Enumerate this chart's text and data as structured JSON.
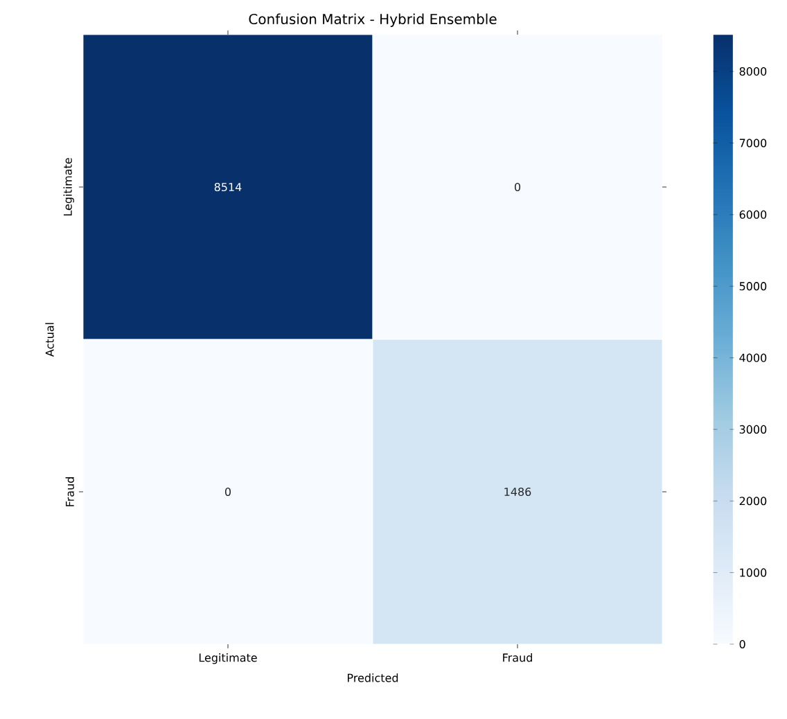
{
  "chart_data": {
    "type": "heatmap",
    "title": "Confusion Matrix - Hybrid Ensemble",
    "xlabel": "Predicted",
    "ylabel": "Actual",
    "categories": [
      "Legitimate",
      "Fraud"
    ],
    "y_categories": [
      "Legitimate",
      "Fraud"
    ],
    "cells": [
      [
        8514,
        0
      ],
      [
        0,
        1486
      ]
    ],
    "data_labels": true,
    "clim": [
      0,
      8514
    ],
    "cticks": [
      0,
      1000,
      2000,
      3000,
      4000,
      5000,
      6000,
      7000,
      8000
    ]
  }
}
